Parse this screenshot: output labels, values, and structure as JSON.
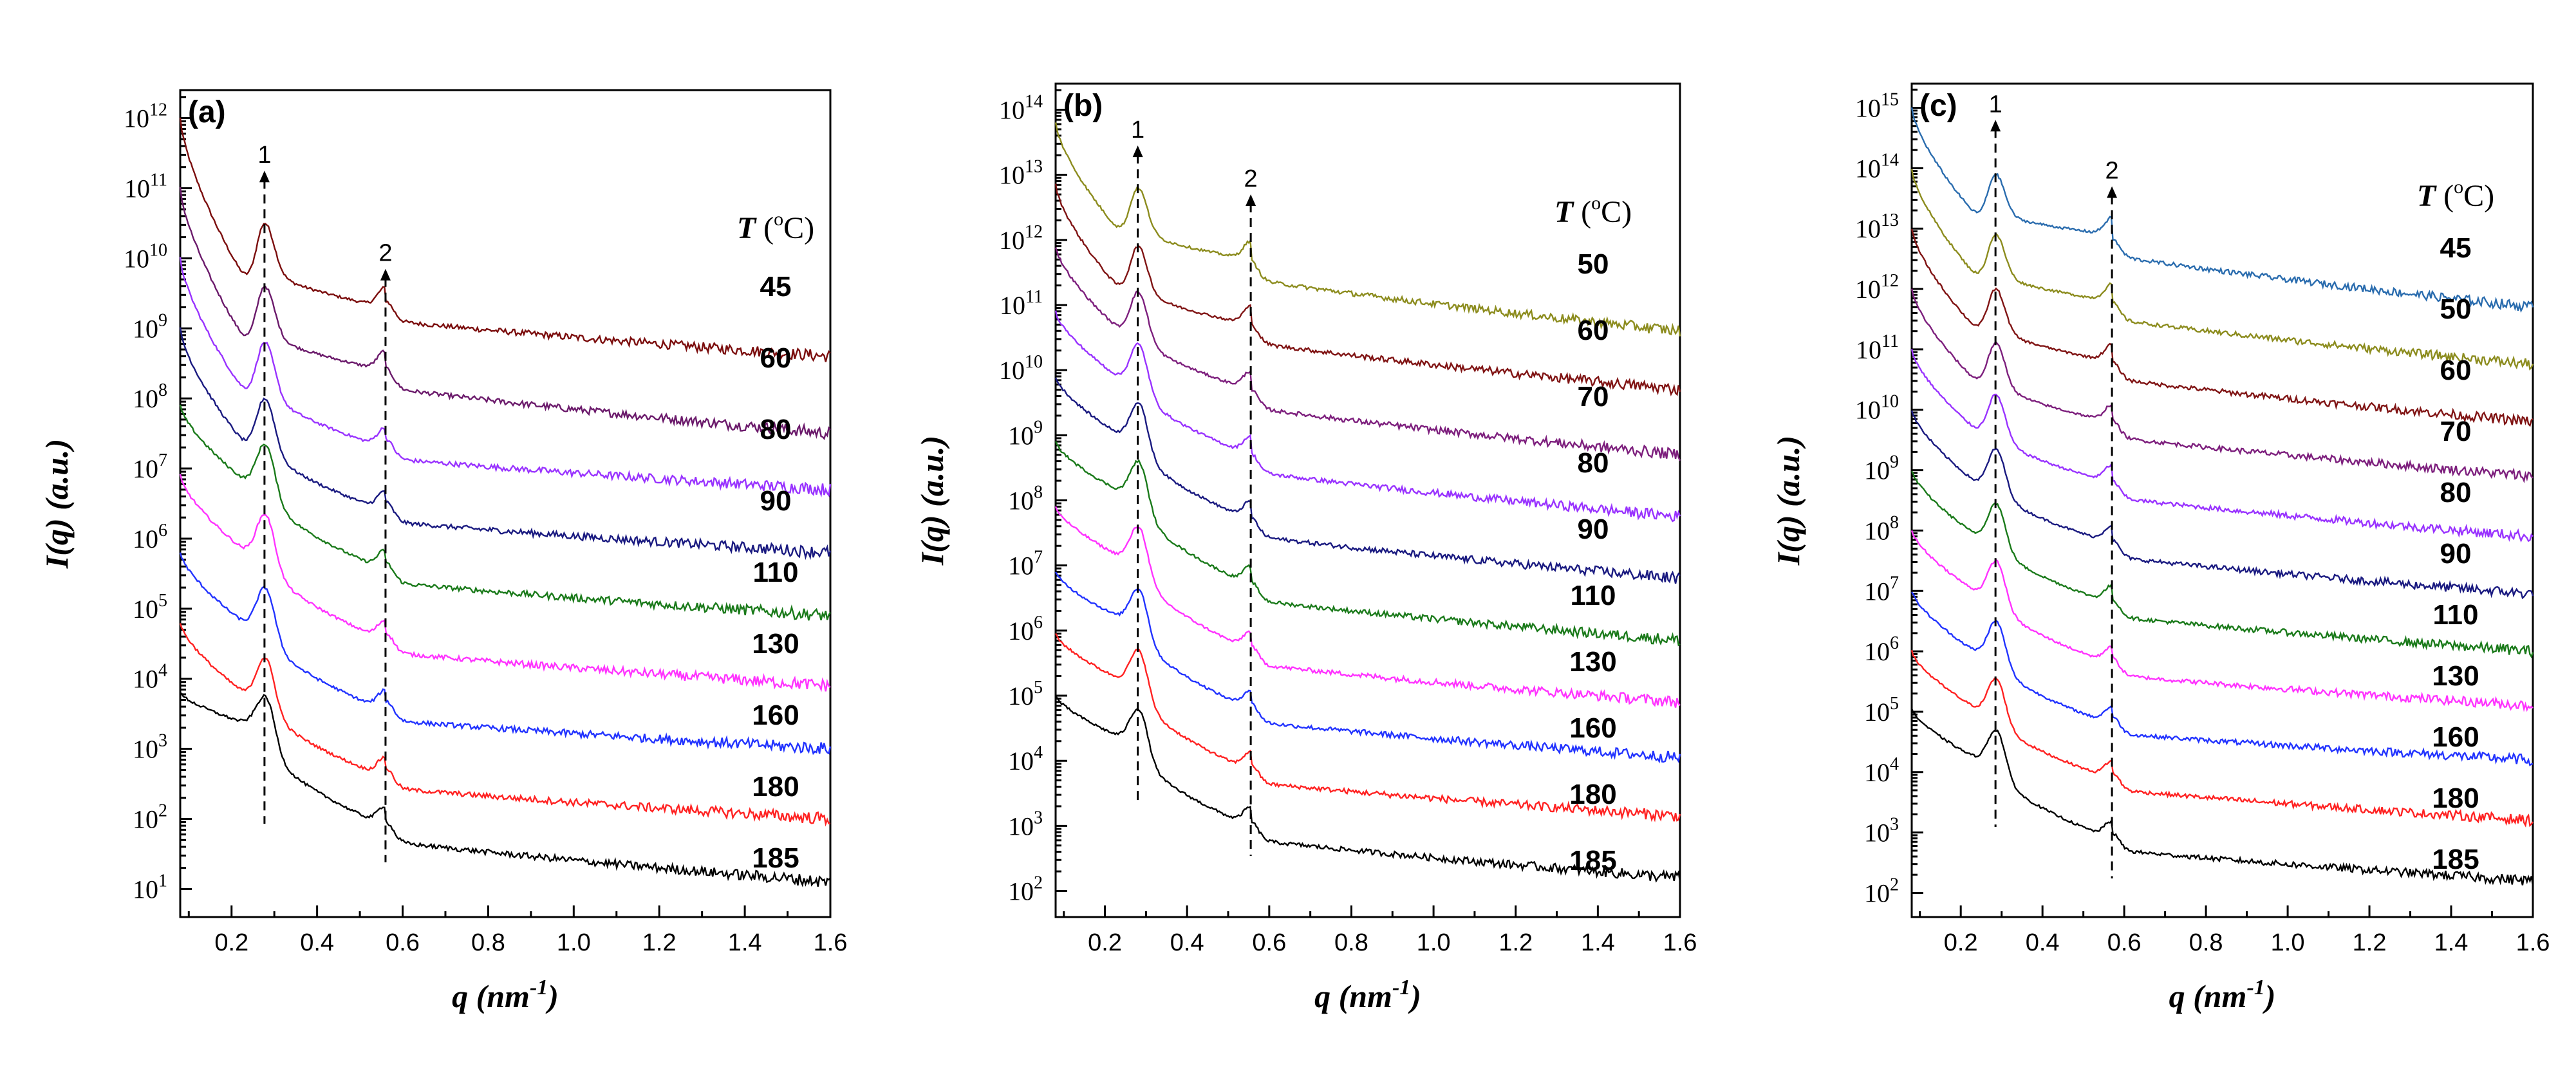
{
  "figure": {
    "xlabel_main": "q (nm",
    "xlabel_sup": "-1",
    "xlabel_close": ")",
    "ylabel": "I(q) (a.u.)",
    "temp_header_T": "T",
    "temp_header_rest": " (",
    "temp_header_sup": "o",
    "temp_header_C": "C)",
    "peak_labels": [
      "1",
      "2"
    ]
  },
  "colors": {
    "45": "#7b0d0d",
    "50": "#8c8c1e",
    "60a": "#6b1a6b",
    "60bc": "#801414",
    "70": "#7d1f7d",
    "80": "#9933ff",
    "90": "#1a1a80",
    "110": "#1a7a1a",
    "130": "#ff33ff",
    "160": "#2233ff",
    "180": "#ff2222",
    "185": "#000000",
    "45c": "#2a6cae"
  },
  "chart_data": [
    {
      "type": "line",
      "panel": "(a)",
      "xlabel": "q (nm-1)",
      "ylabel": "I(q) (a.u.)",
      "xlim": [
        0.08,
        1.6
      ],
      "xticks": [
        "0.2",
        "0.4",
        "0.6",
        "0.8",
        "1.0",
        "1.2",
        "1.4",
        "1.6"
      ],
      "ylim_exp": [
        0.6,
        12.4
      ],
      "yticks_exp": [
        1,
        2,
        3,
        4,
        5,
        6,
        7,
        8,
        9,
        10,
        11,
        12
      ],
      "peak_positions": [
        0.277,
        0.56
      ],
      "peak1_top_exp": 11.25,
      "peak2_top_exp": 9.85,
      "series": [
        {
          "name": "45",
          "color_key": "45",
          "start_exp": 12.0,
          "peak1": 10.5,
          "peak2": 9.6,
          "end_exp": 8.6
        },
        {
          "name": "60",
          "color_key": "60a",
          "start_exp": 11.0,
          "peak1": 9.6,
          "peak2": 8.7,
          "end_exp": 7.5
        },
        {
          "name": "80",
          "color_key": "80",
          "start_exp": 10.0,
          "peak1": 8.8,
          "peak2": 7.6,
          "end_exp": 6.7
        },
        {
          "name": "90",
          "color_key": "90",
          "start_exp": 9.0,
          "peak1": 8.0,
          "peak2": 6.7,
          "end_exp": 5.8
        },
        {
          "name": "110",
          "color_key": "110",
          "start_exp": 7.9,
          "peak1": 7.35,
          "peak2": 5.85,
          "end_exp": 4.9
        },
        {
          "name": "130",
          "color_key": "130",
          "start_exp": 6.9,
          "peak1": 6.35,
          "peak2": 4.85,
          "end_exp": 3.9
        },
        {
          "name": "160",
          "color_key": "160",
          "start_exp": 5.8,
          "peak1": 5.3,
          "peak2": 3.85,
          "end_exp": 3.0
        },
        {
          "name": "180",
          "color_key": "180",
          "start_exp": 4.8,
          "peak1": 4.3,
          "peak2": 2.9,
          "end_exp": 2.0
        },
        {
          "name": "185",
          "color_key": "185",
          "start_exp": 3.8,
          "peak1": 3.75,
          "peak2": 2.2,
          "end_exp": 1.1
        }
      ]
    },
    {
      "type": "line",
      "panel": "(b)",
      "xlabel": "q (nm-1)",
      "ylabel": "I(q) (a.u.)",
      "xlim": [
        0.08,
        1.6
      ],
      "xticks": [
        "0.2",
        "0.4",
        "0.6",
        "0.8",
        "1.0",
        "1.2",
        "1.4",
        "1.6"
      ],
      "ylim_exp": [
        1.6,
        14.4
      ],
      "yticks_exp": [
        2,
        3,
        4,
        5,
        6,
        7,
        8,
        9,
        10,
        11,
        12,
        13,
        14
      ],
      "peak_positions": [
        0.28,
        0.555
      ],
      "peak1_top_exp": 13.45,
      "peak2_top_exp": 12.7,
      "series": [
        {
          "name": "50",
          "color_key": "50",
          "start_exp": 13.8,
          "peak1": 12.8,
          "peak2": 12.0,
          "end_exp": 10.6
        },
        {
          "name": "60",
          "color_key": "60bc",
          "start_exp": 12.85,
          "peak1": 11.9,
          "peak2": 11.0,
          "end_exp": 9.7
        },
        {
          "name": "70",
          "color_key": "70",
          "start_exp": 11.9,
          "peak1": 11.2,
          "peak2": 10.0,
          "end_exp": 8.7
        },
        {
          "name": "80",
          "color_key": "80",
          "start_exp": 10.9,
          "peak1": 10.4,
          "peak2": 9.0,
          "end_exp": 7.75
        },
        {
          "name": "90",
          "color_key": "90",
          "start_exp": 9.9,
          "peak1": 9.5,
          "peak2": 8.0,
          "end_exp": 6.8
        },
        {
          "name": "110",
          "color_key": "110",
          "start_exp": 8.9,
          "peak1": 8.6,
          "peak2": 7.0,
          "end_exp": 5.85
        },
        {
          "name": "130",
          "color_key": "130",
          "start_exp": 7.9,
          "peak1": 7.6,
          "peak2": 6.0,
          "end_exp": 4.9
        },
        {
          "name": "160",
          "color_key": "160",
          "start_exp": 6.9,
          "peak1": 6.65,
          "peak2": 5.1,
          "end_exp": 4.05
        },
        {
          "name": "180",
          "color_key": "180",
          "start_exp": 5.95,
          "peak1": 5.7,
          "peak2": 4.15,
          "end_exp": 3.15
        },
        {
          "name": "185",
          "color_key": "185",
          "start_exp": 5.0,
          "peak1": 4.8,
          "peak2": 3.3,
          "end_exp": 2.2
        }
      ]
    },
    {
      "type": "line",
      "panel": "(c)",
      "xlabel": "q (nm-1)",
      "ylabel": "I(q) (a.u.)",
      "xlim": [
        0.08,
        1.6
      ],
      "xticks": [
        "0.2",
        "0.4",
        "0.6",
        "0.8",
        "1.0",
        "1.2",
        "1.4",
        "1.6"
      ],
      "ylim_exp": [
        1.6,
        15.4
      ],
      "yticks_exp": [
        2,
        3,
        4,
        5,
        6,
        7,
        8,
        9,
        10,
        11,
        12,
        13,
        14,
        15
      ],
      "peak_positions": [
        0.285,
        0.57
      ],
      "peak1_top_exp": 14.8,
      "peak2_top_exp": 13.7,
      "series": [
        {
          "name": "45",
          "color_key": "45c",
          "start_exp": 15.0,
          "peak1": 13.9,
          "peak2": 13.2,
          "end_exp": 11.7
        },
        {
          "name": "50",
          "color_key": "50",
          "start_exp": 14.0,
          "peak1": 12.9,
          "peak2": 12.1,
          "end_exp": 10.75
        },
        {
          "name": "60",
          "color_key": "60bc",
          "start_exp": 13.0,
          "peak1": 12.0,
          "peak2": 11.1,
          "end_exp": 9.8
        },
        {
          "name": "70",
          "color_key": "70",
          "start_exp": 12.0,
          "peak1": 11.1,
          "peak2": 10.1,
          "end_exp": 8.9
        },
        {
          "name": "80",
          "color_key": "80",
          "start_exp": 11.0,
          "peak1": 10.25,
          "peak2": 9.1,
          "end_exp": 7.9
        },
        {
          "name": "90",
          "color_key": "90",
          "start_exp": 10.0,
          "peak1": 9.35,
          "peak2": 8.1,
          "end_exp": 6.95
        },
        {
          "name": "110",
          "color_key": "110",
          "start_exp": 9.0,
          "peak1": 8.45,
          "peak2": 7.1,
          "end_exp": 6.0
        },
        {
          "name": "130",
          "color_key": "130",
          "start_exp": 8.0,
          "peak1": 7.5,
          "peak2": 6.1,
          "end_exp": 5.1
        },
        {
          "name": "160",
          "color_key": "160",
          "start_exp": 7.0,
          "peak1": 6.5,
          "peak2": 5.1,
          "end_exp": 4.2
        },
        {
          "name": "180",
          "color_key": "180",
          "start_exp": 6.0,
          "peak1": 5.55,
          "peak2": 4.2,
          "end_exp": 3.2
        },
        {
          "name": "185",
          "color_key": "185",
          "start_exp": 5.05,
          "peak1": 4.7,
          "peak2": 3.2,
          "end_exp": 2.2
        }
      ]
    }
  ]
}
